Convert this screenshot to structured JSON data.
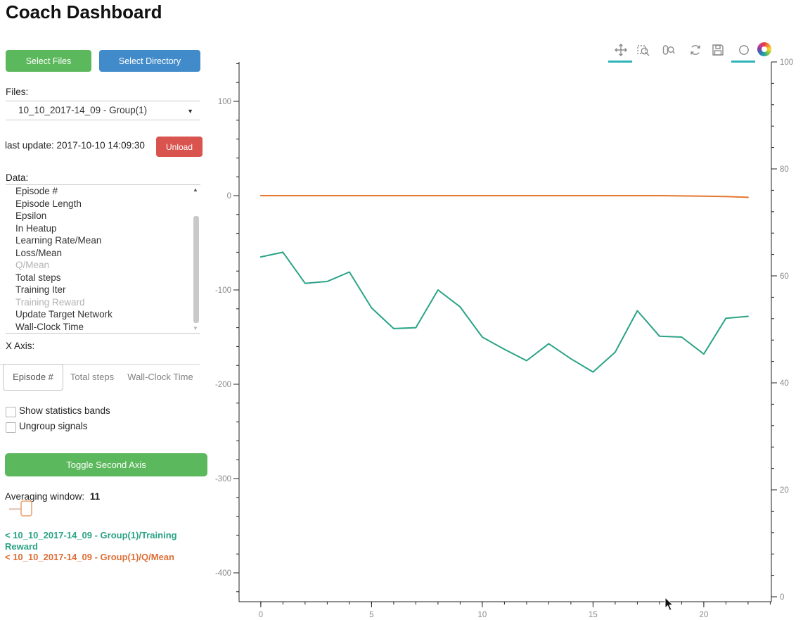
{
  "header": {
    "title": "Coach Dashboard"
  },
  "sidebar": {
    "select_files_label": "Select Files",
    "select_directory_label": "Select Directory",
    "files_label": "Files:",
    "file_selected": "10_10_2017-14_09 - Group(1)",
    "last_update": "last update: 2017-10-10 14:09:30",
    "unload_label": "Unload",
    "data_label": "Data:",
    "data_items": [
      {
        "label": "Episode #",
        "dimmed": false
      },
      {
        "label": "Episode Length",
        "dimmed": false
      },
      {
        "label": "Epsilon",
        "dimmed": false
      },
      {
        "label": "In Heatup",
        "dimmed": false
      },
      {
        "label": "Learning Rate/Mean",
        "dimmed": false
      },
      {
        "label": "Loss/Mean",
        "dimmed": false
      },
      {
        "label": "Q/Mean",
        "dimmed": true
      },
      {
        "label": "Total steps",
        "dimmed": false
      },
      {
        "label": "Training Iter",
        "dimmed": false
      },
      {
        "label": "Training Reward",
        "dimmed": true
      },
      {
        "label": "Update Target Network",
        "dimmed": false
      },
      {
        "label": "Wall-Clock Time",
        "dimmed": false
      }
    ],
    "x_axis_label": "X Axis:",
    "x_axis_tabs": [
      {
        "label": "Episode #",
        "active": true
      },
      {
        "label": "Total steps",
        "active": false
      },
      {
        "label": "Wall-Clock Time",
        "active": false
      }
    ],
    "checkboxes": [
      {
        "label": "Show statistics bands",
        "checked": false
      },
      {
        "label": "Ungroup signals",
        "checked": false
      }
    ],
    "toggle_second_axis_label": "Toggle Second Axis",
    "averaging_window_label": "Averaging window:",
    "averaging_window_value": "11",
    "legend": [
      {
        "label": "< 10_10_2017-14_09 - Group(1)/Training Reward",
        "color": "#2aa386"
      },
      {
        "label": "< 10_10_2017-14_09 - Group(1)/Q/Mean",
        "color": "#dd6e35"
      }
    ]
  },
  "toolbar": {
    "tools": [
      {
        "name": "pan",
        "active": true
      },
      {
        "name": "box-zoom",
        "active": false
      },
      {
        "name": "wheel-zoom",
        "active": false
      },
      {
        "name": "reset",
        "active": false
      },
      {
        "name": "save",
        "active": false
      },
      {
        "name": "hover",
        "active": true
      },
      {
        "name": "bokeh-logo",
        "active": false
      }
    ],
    "active_color": "#2eb3bb"
  },
  "chart_data": {
    "type": "line",
    "title": "",
    "xlabel": "",
    "ylabel": "",
    "grid": false,
    "legend_position": "external-left-sidebar",
    "x": [
      0,
      1,
      2,
      3,
      4,
      5,
      6,
      7,
      8,
      9,
      10,
      11,
      12,
      13,
      14,
      15,
      16,
      17,
      18,
      19,
      20,
      21,
      22
    ],
    "series": [
      {
        "name": "10_10_2017-14_09 - Group(1)/Training Reward",
        "color": "#2aa386",
        "axis": "left",
        "values": [
          -65,
          -60,
          -93,
          -91,
          -81,
          -119,
          -141,
          -140,
          -100,
          -118,
          -150,
          -163,
          -175,
          -157,
          -173,
          -187,
          -166,
          -122,
          -149,
          -150,
          -168,
          -130,
          -128
        ]
      },
      {
        "name": "10_10_2017-14_09 - Group(1)/Q/Mean",
        "color": "#e5772e",
        "axis": "left",
        "values": [
          0,
          0,
          0,
          0,
          0,
          0,
          0,
          0,
          0,
          0,
          0,
          0,
          0,
          0,
          0,
          0,
          0,
          0,
          0,
          -0.3,
          -0.6,
          -1,
          -1.8
        ]
      }
    ],
    "x_axis": {
      "ticks": [
        0,
        5,
        10,
        15,
        20
      ],
      "range": [
        -0.98,
        23.05
      ],
      "minor_step": 1
    },
    "y_axis_left": {
      "ticks": [
        100,
        0,
        -100,
        -200,
        -300,
        -400
      ],
      "range": [
        -430.6,
        141.8
      ],
      "minor_step": 20
    },
    "y_axis_right": {
      "ticks": [
        100,
        80,
        60,
        40,
        20,
        0
      ],
      "range": [
        -0.92,
        100
      ],
      "minor_step": 4
    }
  }
}
